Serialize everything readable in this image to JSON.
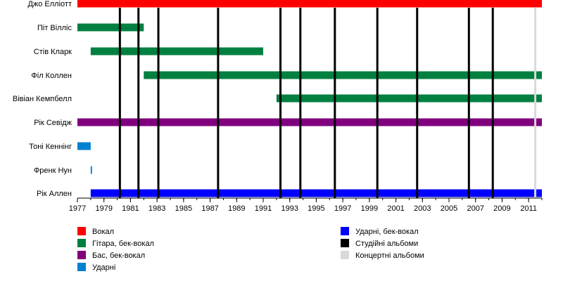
{
  "chart_data": {
    "type": "timeline",
    "xlim": [
      1977,
      2012
    ],
    "x_ticks": [
      1977,
      1979,
      1981,
      1983,
      1985,
      1987,
      1989,
      1991,
      1993,
      1995,
      1997,
      1999,
      2001,
      2003,
      2005,
      2007,
      2009,
      2011
    ],
    "members": [
      {
        "name": "Джо Еллiотт",
        "bars": [
          {
            "role": "vocals",
            "start": 1977.0,
            "end": 2012.0
          }
        ]
      },
      {
        "name": "Піт Вілліс",
        "bars": [
          {
            "role": "guitar",
            "start": 1977.0,
            "end": 1982.0
          }
        ]
      },
      {
        "name": "Стів Кларк",
        "bars": [
          {
            "role": "guitar",
            "start": 1978.0,
            "end": 1991.0
          }
        ]
      },
      {
        "name": "Філ Коллен",
        "bars": [
          {
            "role": "guitar",
            "start": 1982.0,
            "end": 2012.0
          }
        ]
      },
      {
        "name": "Вівіан Кемпбелл",
        "bars": [
          {
            "role": "guitar",
            "start": 1992.0,
            "end": 2012.0
          }
        ]
      },
      {
        "name": "Рік Севідж",
        "bars": [
          {
            "role": "bass",
            "start": 1977.0,
            "end": 2012.0
          }
        ]
      },
      {
        "name": "Тоні Кеннінг",
        "bars": [
          {
            "role": "drums",
            "start": 1977.0,
            "end": 1978.0
          }
        ]
      },
      {
        "name": "Френк Нун",
        "bars": [
          {
            "role": "drums",
            "start": 1978.0,
            "end": 1978.1
          }
        ]
      },
      {
        "name": "Рік Аллен",
        "bars": [
          {
            "role": "drums_backing",
            "start": 1978.0,
            "end": 2012.0
          }
        ]
      }
    ],
    "studio_albums": [
      1980.2,
      1981.6,
      1983.1,
      1987.6,
      1992.3,
      1993.8,
      1996.4,
      1999.6,
      2002.6,
      2006.5,
      2008.3
    ],
    "live_albums": [
      2011.5
    ],
    "legend": [
      {
        "key": "vocals",
        "label": "Вокал",
        "color": "#ff0000"
      },
      {
        "key": "guitar",
        "label": "Гітара, бек-вокал",
        "color": "#008040"
      },
      {
        "key": "bass",
        "label": "Бас, бек-вокал",
        "color": "#800080"
      },
      {
        "key": "drums",
        "label": "Ударні",
        "color": "#0080d0"
      },
      {
        "key": "drums_backing",
        "label": "Ударні, бек-вокал",
        "color": "#0000ff"
      },
      {
        "key": "studio",
        "label": "Студійні альбоми",
        "color": "#000000"
      },
      {
        "key": "live",
        "label": "Концертні альбоми",
        "color": "#d9d9d9"
      }
    ]
  }
}
